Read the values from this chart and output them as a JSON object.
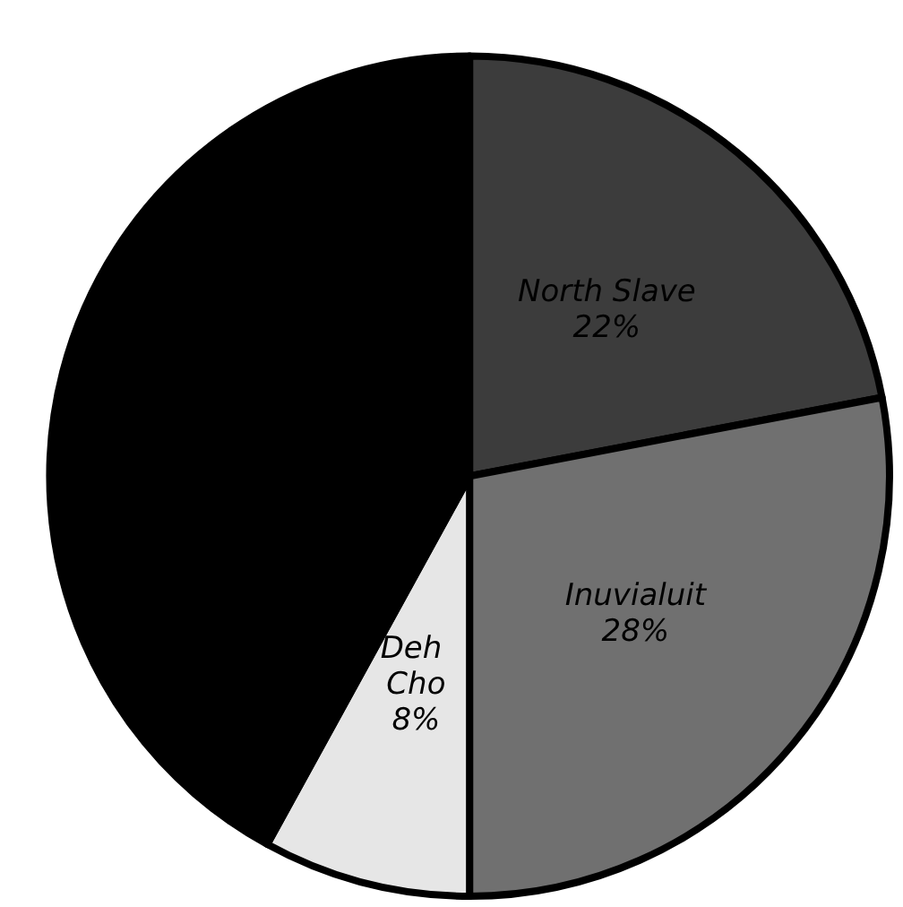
{
  "chart_data": {
    "type": "pie",
    "categories": [
      "North Slave",
      "Inuvialuit",
      "Deh Cho",
      null
    ],
    "values": [
      22,
      28,
      8,
      42
    ],
    "value_labels": [
      "22%",
      "28%",
      "8%",
      null
    ],
    "colors": [
      "#3c3c3c",
      "#707070",
      "#e6e6e6",
      "#000000"
    ]
  }
}
